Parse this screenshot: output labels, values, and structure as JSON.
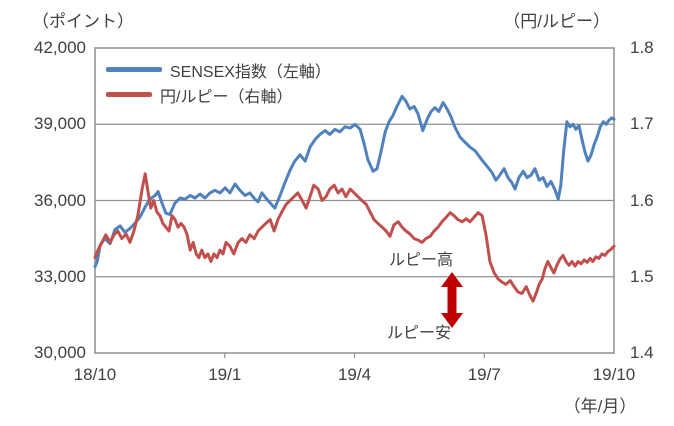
{
  "colors": {
    "grid": "#8f8f8f",
    "text": "#404040",
    "background": "#ffffff"
  },
  "chart_data": {
    "type": "line",
    "x_unit": "months since 2018/10",
    "grid": true,
    "legend_position": "top-left-inside",
    "left_axis": {
      "title": "（ポイント）",
      "range": [
        30000,
        42000
      ],
      "ticks": [
        {
          "value": 42000,
          "label": "42,000"
        },
        {
          "value": 39000,
          "label": "39,000"
        },
        {
          "value": 36000,
          "label": "36,000"
        },
        {
          "value": 33000,
          "label": "33,000"
        },
        {
          "value": 30000,
          "label": "30,000"
        }
      ]
    },
    "right_axis": {
      "title": "（円/ルピー）",
      "range": [
        1.4,
        1.8
      ],
      "ticks": [
        {
          "value": 1.8,
          "label": "1.8"
        },
        {
          "value": 1.7,
          "label": "1.7"
        },
        {
          "value": 1.6,
          "label": "1.6"
        },
        {
          "value": 1.5,
          "label": "1.5"
        },
        {
          "value": 1.4,
          "label": "1.4"
        }
      ]
    },
    "x_axis": {
      "title": "（年/月）",
      "range": [
        0,
        12
      ],
      "ticks": [
        {
          "m": 0,
          "label": "18/10"
        },
        {
          "m": 3,
          "label": "19/1"
        },
        {
          "m": 6,
          "label": "19/4"
        },
        {
          "m": 9,
          "label": "19/7"
        },
        {
          "m": 12,
          "label": "19/10"
        }
      ]
    },
    "annotations": {
      "high": "ルピー高",
      "low": "ルピー安",
      "arrow_color": "#C00000"
    },
    "series": [
      {
        "name": "SENSEX指数（左軸）",
        "axis": "left",
        "color": "#4F81BD",
        "points": [
          [
            0,
            33400
          ],
          [
            0.05,
            33600
          ],
          [
            0.12,
            34250
          ],
          [
            0.23,
            34500
          ],
          [
            0.35,
            34300
          ],
          [
            0.46,
            34850
          ],
          [
            0.58,
            35000
          ],
          [
            0.69,
            34750
          ],
          [
            0.81,
            34900
          ],
          [
            0.92,
            35100
          ],
          [
            1.04,
            35350
          ],
          [
            1.16,
            35750
          ],
          [
            1.27,
            36050
          ],
          [
            1.39,
            36200
          ],
          [
            1.46,
            36350
          ],
          [
            1.55,
            35900
          ],
          [
            1.64,
            35500
          ],
          [
            1.73,
            35450
          ],
          [
            1.85,
            35900
          ],
          [
            1.97,
            36100
          ],
          [
            2.08,
            36050
          ],
          [
            2.2,
            36200
          ],
          [
            2.31,
            36100
          ],
          [
            2.43,
            36250
          ],
          [
            2.54,
            36100
          ],
          [
            2.66,
            36300
          ],
          [
            2.77,
            36400
          ],
          [
            2.89,
            36300
          ],
          [
            3.01,
            36500
          ],
          [
            3.12,
            36300
          ],
          [
            3.24,
            36650
          ],
          [
            3.35,
            36400
          ],
          [
            3.47,
            36200
          ],
          [
            3.58,
            36300
          ],
          [
            3.7,
            36050
          ],
          [
            3.77,
            35950
          ],
          [
            3.86,
            36300
          ],
          [
            3.95,
            36100
          ],
          [
            4.05,
            35900
          ],
          [
            4.16,
            35700
          ],
          [
            4.28,
            36200
          ],
          [
            4.39,
            36700
          ],
          [
            4.51,
            37200
          ],
          [
            4.62,
            37550
          ],
          [
            4.74,
            37800
          ],
          [
            4.86,
            37550
          ],
          [
            4.97,
            38100
          ],
          [
            5.09,
            38400
          ],
          [
            5.2,
            38600
          ],
          [
            5.32,
            38750
          ],
          [
            5.43,
            38600
          ],
          [
            5.55,
            38800
          ],
          [
            5.66,
            38700
          ],
          [
            5.78,
            38900
          ],
          [
            5.9,
            38850
          ],
          [
            6.01,
            39000
          ],
          [
            6.13,
            38800
          ],
          [
            6.22,
            38250
          ],
          [
            6.31,
            37600
          ],
          [
            6.43,
            37150
          ],
          [
            6.52,
            37250
          ],
          [
            6.61,
            37900
          ],
          [
            6.71,
            38700
          ],
          [
            6.8,
            39100
          ],
          [
            6.89,
            39350
          ],
          [
            6.98,
            39700
          ],
          [
            7.1,
            40100
          ],
          [
            7.19,
            39900
          ],
          [
            7.28,
            39600
          ],
          [
            7.38,
            39700
          ],
          [
            7.47,
            39400
          ],
          [
            7.58,
            38750
          ],
          [
            7.68,
            39200
          ],
          [
            7.77,
            39500
          ],
          [
            7.86,
            39650
          ],
          [
            7.95,
            39500
          ],
          [
            8.05,
            39850
          ],
          [
            8.14,
            39600
          ],
          [
            8.23,
            39300
          ],
          [
            8.32,
            38900
          ],
          [
            8.44,
            38500
          ],
          [
            8.55,
            38300
          ],
          [
            8.67,
            38100
          ],
          [
            8.79,
            37950
          ],
          [
            8.9,
            37700
          ],
          [
            8.99,
            37500
          ],
          [
            9.09,
            37300
          ],
          [
            9.18,
            37100
          ],
          [
            9.27,
            36800
          ],
          [
            9.36,
            37000
          ],
          [
            9.46,
            37250
          ],
          [
            9.55,
            36900
          ],
          [
            9.64,
            36700
          ],
          [
            9.71,
            36450
          ],
          [
            9.8,
            36900
          ],
          [
            9.9,
            37150
          ],
          [
            9.99,
            36900
          ],
          [
            10.08,
            37000
          ],
          [
            10.17,
            37250
          ],
          [
            10.27,
            36800
          ],
          [
            10.36,
            36900
          ],
          [
            10.45,
            36550
          ],
          [
            10.54,
            36750
          ],
          [
            10.64,
            36400
          ],
          [
            10.71,
            36050
          ],
          [
            10.77,
            36600
          ],
          [
            10.84,
            38000
          ],
          [
            10.91,
            39100
          ],
          [
            10.98,
            38900
          ],
          [
            11.05,
            39000
          ],
          [
            11.12,
            38800
          ],
          [
            11.19,
            38950
          ],
          [
            11.26,
            38400
          ],
          [
            11.33,
            37900
          ],
          [
            11.4,
            37550
          ],
          [
            11.47,
            37800
          ],
          [
            11.54,
            38200
          ],
          [
            11.61,
            38500
          ],
          [
            11.68,
            38900
          ],
          [
            11.75,
            39100
          ],
          [
            11.82,
            39000
          ],
          [
            11.88,
            39150
          ],
          [
            11.95,
            39250
          ],
          [
            12,
            39200
          ]
        ]
      },
      {
        "name": "円/ルピー（右軸）",
        "axis": "right",
        "color": "#C0504D",
        "points": [
          [
            0,
            1.525
          ],
          [
            0.07,
            1.535
          ],
          [
            0.16,
            1.545
          ],
          [
            0.25,
            1.555
          ],
          [
            0.35,
            1.545
          ],
          [
            0.44,
            1.555
          ],
          [
            0.53,
            1.56
          ],
          [
            0.62,
            1.55
          ],
          [
            0.72,
            1.556
          ],
          [
            0.81,
            1.545
          ],
          [
            0.9,
            1.56
          ],
          [
            0.99,
            1.58
          ],
          [
            1.09,
            1.615
          ],
          [
            1.16,
            1.635
          ],
          [
            1.23,
            1.61
          ],
          [
            1.29,
            1.59
          ],
          [
            1.36,
            1.6
          ],
          [
            1.43,
            1.585
          ],
          [
            1.5,
            1.58
          ],
          [
            1.57,
            1.57
          ],
          [
            1.64,
            1.565
          ],
          [
            1.71,
            1.56
          ],
          [
            1.78,
            1.58
          ],
          [
            1.85,
            1.575
          ],
          [
            1.92,
            1.565
          ],
          [
            1.99,
            1.57
          ],
          [
            2.06,
            1.565
          ],
          [
            2.13,
            1.555
          ],
          [
            2.2,
            1.535
          ],
          [
            2.27,
            1.545
          ],
          [
            2.34,
            1.53
          ],
          [
            2.4,
            1.525
          ],
          [
            2.47,
            1.535
          ],
          [
            2.54,
            1.525
          ],
          [
            2.61,
            1.53
          ],
          [
            2.68,
            1.52
          ],
          [
            2.75,
            1.53
          ],
          [
            2.82,
            1.525
          ],
          [
            2.89,
            1.535
          ],
          [
            2.96,
            1.53
          ],
          [
            3.03,
            1.545
          ],
          [
            3.12,
            1.54
          ],
          [
            3.21,
            1.53
          ],
          [
            3.31,
            1.545
          ],
          [
            3.4,
            1.55
          ],
          [
            3.49,
            1.545
          ],
          [
            3.58,
            1.555
          ],
          [
            3.68,
            1.55
          ],
          [
            3.77,
            1.56
          ],
          [
            3.86,
            1.565
          ],
          [
            3.95,
            1.57
          ],
          [
            4.05,
            1.575
          ],
          [
            4.14,
            1.56
          ],
          [
            4.23,
            1.575
          ],
          [
            4.32,
            1.585
          ],
          [
            4.42,
            1.595
          ],
          [
            4.51,
            1.6
          ],
          [
            4.6,
            1.605
          ],
          [
            4.69,
            1.61
          ],
          [
            4.79,
            1.6
          ],
          [
            4.88,
            1.59
          ],
          [
            4.97,
            1.605
          ],
          [
            5.06,
            1.62
          ],
          [
            5.16,
            1.615
          ],
          [
            5.25,
            1.6
          ],
          [
            5.34,
            1.605
          ],
          [
            5.43,
            1.615
          ],
          [
            5.53,
            1.62
          ],
          [
            5.62,
            1.61
          ],
          [
            5.71,
            1.615
          ],
          [
            5.8,
            1.605
          ],
          [
            5.9,
            1.615
          ],
          [
            5.99,
            1.61
          ],
          [
            6.08,
            1.605
          ],
          [
            6.17,
            1.6
          ],
          [
            6.27,
            1.595
          ],
          [
            6.36,
            1.585
          ],
          [
            6.45,
            1.575
          ],
          [
            6.54,
            1.57
          ],
          [
            6.64,
            1.565
          ],
          [
            6.73,
            1.56
          ],
          [
            6.82,
            1.553
          ],
          [
            6.91,
            1.568
          ],
          [
            7.01,
            1.572
          ],
          [
            7.1,
            1.565
          ],
          [
            7.19,
            1.56
          ],
          [
            7.28,
            1.556
          ],
          [
            7.38,
            1.55
          ],
          [
            7.47,
            1.548
          ],
          [
            7.56,
            1.545
          ],
          [
            7.65,
            1.55
          ],
          [
            7.75,
            1.553
          ],
          [
            7.84,
            1.56
          ],
          [
            7.93,
            1.565
          ],
          [
            8.02,
            1.572
          ],
          [
            8.12,
            1.578
          ],
          [
            8.21,
            1.584
          ],
          [
            8.3,
            1.58
          ],
          [
            8.39,
            1.575
          ],
          [
            8.49,
            1.572
          ],
          [
            8.58,
            1.576
          ],
          [
            8.67,
            1.572
          ],
          [
            8.76,
            1.578
          ],
          [
            8.86,
            1.584
          ],
          [
            8.95,
            1.58
          ],
          [
            9.04,
            1.555
          ],
          [
            9.13,
            1.52
          ],
          [
            9.23,
            1.505
          ],
          [
            9.32,
            1.497
          ],
          [
            9.41,
            1.493
          ],
          [
            9.5,
            1.49
          ],
          [
            9.6,
            1.495
          ],
          [
            9.69,
            1.487
          ],
          [
            9.78,
            1.48
          ],
          [
            9.87,
            1.478
          ],
          [
            9.97,
            1.487
          ],
          [
            10.06,
            1.475
          ],
          [
            10.13,
            1.468
          ],
          [
            10.2,
            1.478
          ],
          [
            10.27,
            1.49
          ],
          [
            10.34,
            1.497
          ],
          [
            10.4,
            1.51
          ],
          [
            10.47,
            1.52
          ],
          [
            10.54,
            1.512
          ],
          [
            10.61,
            1.505
          ],
          [
            10.68,
            1.515
          ],
          [
            10.75,
            1.523
          ],
          [
            10.82,
            1.528
          ],
          [
            10.89,
            1.52
          ],
          [
            10.96,
            1.515
          ],
          [
            11.03,
            1.52
          ],
          [
            11.1,
            1.514
          ],
          [
            11.17,
            1.52
          ],
          [
            11.24,
            1.517
          ],
          [
            11.31,
            1.522
          ],
          [
            11.38,
            1.519
          ],
          [
            11.45,
            1.524
          ],
          [
            11.51,
            1.52
          ],
          [
            11.58,
            1.526
          ],
          [
            11.65,
            1.524
          ],
          [
            11.72,
            1.53
          ],
          [
            11.79,
            1.528
          ],
          [
            11.86,
            1.533
          ],
          [
            11.93,
            1.536
          ],
          [
            12,
            1.54
          ]
        ]
      }
    ]
  }
}
